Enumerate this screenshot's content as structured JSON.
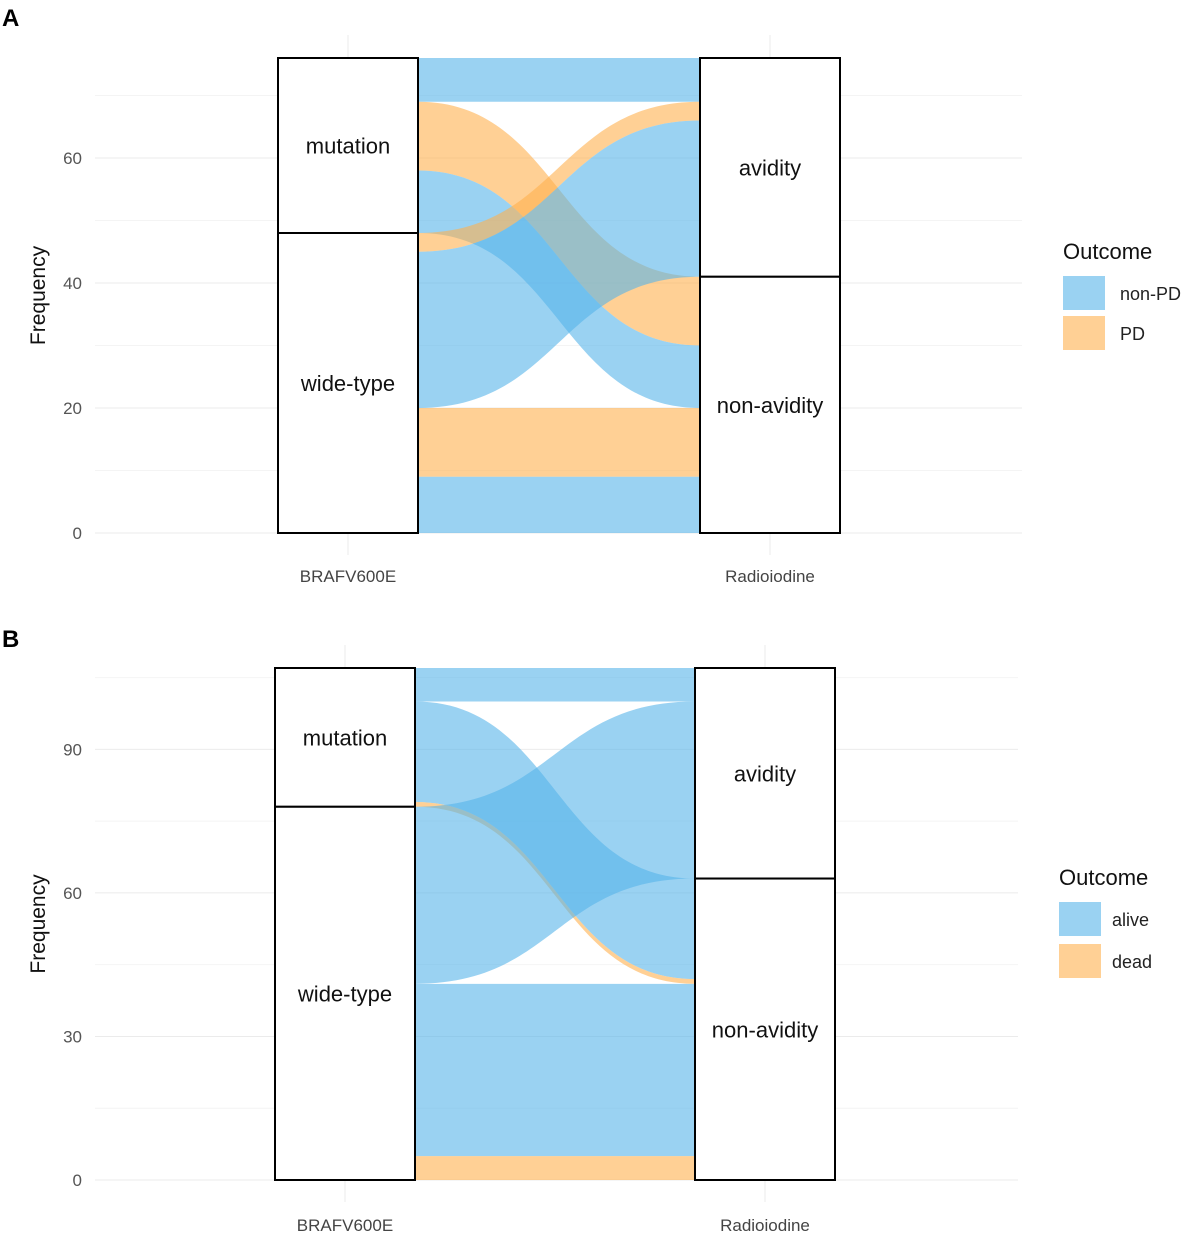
{
  "chart_data": [
    {
      "panel": "A",
      "type": "alluvial",
      "ylabel": "Frequency",
      "ylim": [
        0,
        76
      ],
      "yticks": [
        0,
        20,
        40,
        60
      ],
      "axes": [
        "BRAFV600E",
        "Radioiodine"
      ],
      "strata": {
        "BRAFV600E": [
          {
            "label": "mutation",
            "lo": 48,
            "hi": 76
          },
          {
            "label": "wide-type",
            "lo": 0,
            "hi": 48
          }
        ],
        "Radioiodine": [
          {
            "label": "avidity",
            "lo": 41,
            "hi": 76
          },
          {
            "label": "non-avidity",
            "lo": 0,
            "hi": 41
          }
        ]
      },
      "flows": [
        {
          "group": "non-PD",
          "from": "mutation",
          "to": "avidity",
          "value": 7,
          "left": [
            69,
            76
          ],
          "right": [
            69,
            76
          ]
        },
        {
          "group": "PD",
          "from": "mutation",
          "to": "non-avidity",
          "value": 11,
          "left": [
            58,
            69
          ],
          "right": [
            30,
            41
          ]
        },
        {
          "group": "non-PD",
          "from": "mutation",
          "to": "non-avidity",
          "value": 10,
          "left": [
            48,
            58
          ],
          "right": [
            20,
            30
          ]
        },
        {
          "group": "PD",
          "from": "wide-type",
          "to": "avidity",
          "value": 3,
          "left": [
            45,
            48
          ],
          "right": [
            66,
            69
          ]
        },
        {
          "group": "non-PD",
          "from": "wide-type",
          "to": "avidity",
          "value": 25,
          "left": [
            20,
            45
          ],
          "right": [
            41,
            66
          ]
        },
        {
          "group": "PD",
          "from": "wide-type",
          "to": "non-avidity",
          "value": 11,
          "left": [
            9,
            20
          ],
          "right": [
            9,
            20
          ]
        },
        {
          "group": "non-PD",
          "from": "wide-type",
          "to": "non-avidity",
          "value": 9,
          "left": [
            0,
            9
          ],
          "right": [
            0,
            9
          ]
        }
      ],
      "legend": {
        "title": "Outcome",
        "items": [
          {
            "label": "non-PD",
            "color": "#56B4E9"
          },
          {
            "label": "PD",
            "color": "#FFB14E"
          }
        ]
      }
    },
    {
      "panel": "B",
      "type": "alluvial",
      "ylabel": "Frequency",
      "ylim": [
        0,
        107
      ],
      "yticks": [
        0,
        30,
        60,
        90
      ],
      "axes": [
        "BRAFV600E",
        "Radioiodine"
      ],
      "strata": {
        "BRAFV600E": [
          {
            "label": "mutation",
            "lo": 78,
            "hi": 107
          },
          {
            "label": "wide-type",
            "lo": 0,
            "hi": 78
          }
        ],
        "Radioiodine": [
          {
            "label": "avidity",
            "lo": 63,
            "hi": 107
          },
          {
            "label": "non-avidity",
            "lo": 0,
            "hi": 63
          }
        ]
      },
      "flows": [
        {
          "group": "alive",
          "from": "mutation",
          "to": "avidity",
          "value": 7,
          "left": [
            100,
            107
          ],
          "right": [
            100,
            107
          ]
        },
        {
          "group": "alive",
          "from": "mutation",
          "to": "non-avidity",
          "value": 21,
          "left": [
            79,
            100
          ],
          "right": [
            42,
            63
          ]
        },
        {
          "group": "dead",
          "from": "mutation",
          "to": "non-avidity",
          "value": 1,
          "left": [
            78,
            79
          ],
          "right": [
            41,
            42
          ]
        },
        {
          "group": "alive",
          "from": "wide-type",
          "to": "avidity",
          "value": 37,
          "left": [
            41,
            78
          ],
          "right": [
            63,
            100
          ]
        },
        {
          "group": "alive",
          "from": "wide-type",
          "to": "non-avidity",
          "value": 36,
          "left": [
            5,
            41
          ],
          "right": [
            5,
            41
          ]
        },
        {
          "group": "dead",
          "from": "wide-type",
          "to": "non-avidity",
          "value": 5,
          "left": [
            0,
            5
          ],
          "right": [
            0,
            5
          ]
        }
      ],
      "legend": {
        "title": "Outcome",
        "items": [
          {
            "label": "alive",
            "color": "#56B4E9"
          },
          {
            "label": "dead",
            "color": "#FFB14E"
          }
        ]
      }
    }
  ],
  "panel_labels": [
    "A",
    "B"
  ]
}
